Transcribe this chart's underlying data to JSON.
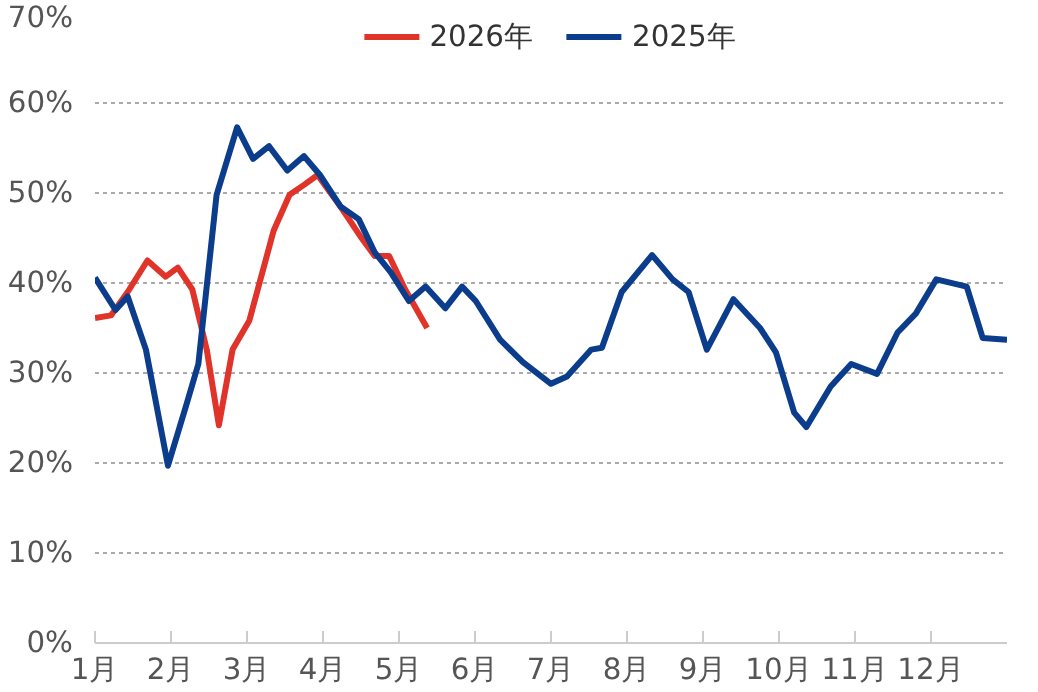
{
  "chart_data": {
    "type": "line",
    "legend": "top",
    "grid": "y",
    "marker": "none",
    "line_style": "solid",
    "xlim": [
      1,
      13
    ],
    "xticks": [
      {
        "value": 1,
        "label": "1月"
      },
      {
        "value": 2,
        "label": "2月"
      },
      {
        "value": 3,
        "label": "3月"
      },
      {
        "value": 4,
        "label": "4月"
      },
      {
        "value": 5,
        "label": "5月"
      },
      {
        "value": 6,
        "label": "6月"
      },
      {
        "value": 7,
        "label": "7月"
      },
      {
        "value": 8,
        "label": "8月"
      },
      {
        "value": 9,
        "label": "9月"
      },
      {
        "value": 10,
        "label": "10月"
      },
      {
        "value": 11,
        "label": "11月"
      },
      {
        "value": 12,
        "label": "12月"
      }
    ],
    "ylim": [
      0,
      70
    ],
    "yticks": [
      {
        "value": 0,
        "label": "0%"
      },
      {
        "value": 10,
        "label": "10%"
      },
      {
        "value": 20,
        "label": "20%"
      },
      {
        "value": 30,
        "label": "30%"
      },
      {
        "value": 40,
        "label": "40%"
      },
      {
        "value": 50,
        "label": "50%"
      },
      {
        "value": 60,
        "label": "60%"
      },
      {
        "value": 70,
        "label": "70%"
      }
    ],
    "series": [
      {
        "name": "2026年",
        "color": "#e0342a",
        "x": [
          1.0,
          1.21,
          1.43,
          1.69,
          1.93,
          2.09,
          2.28,
          2.47,
          2.63,
          2.81,
          3.03,
          3.35,
          3.56,
          3.75,
          3.93,
          4.09,
          4.23,
          4.49,
          4.68,
          4.87,
          5.08,
          5.37
        ],
        "values": [
          36.1,
          36.4,
          39,
          42.5,
          40.7,
          41.7,
          39.3,
          32.6,
          24.2,
          32.6,
          35.8,
          45.8,
          49.8,
          50.9,
          52,
          50.1,
          48.5,
          45.2,
          43,
          43,
          39.3,
          35
        ]
      },
      {
        "name": "2025年",
        "color": "#0b3d8c",
        "x": [
          1.0,
          1.27,
          1.43,
          1.67,
          1.96,
          2.2,
          2.36,
          2.6,
          2.87,
          3.08,
          3.29,
          3.53,
          3.75,
          3.96,
          4.23,
          4.47,
          4.68,
          4.89,
          5.13,
          5.35,
          5.61,
          5.83,
          6.01,
          6.33,
          6.63,
          7.0,
          7.21,
          7.53,
          7.67,
          7.93,
          8.33,
          8.6,
          8.81,
          9.05,
          9.4,
          9.75,
          9.96,
          10.2,
          10.36,
          10.68,
          10.95,
          11.29,
          11.56,
          11.8,
          12.07,
          12.47,
          12.68,
          13.0
        ],
        "values": [
          40.6,
          37,
          38.5,
          32.6,
          19.7,
          26.4,
          31,
          49.8,
          57.3,
          53.8,
          55.2,
          52.5,
          54.1,
          52,
          48.5,
          47.1,
          43.4,
          41.2,
          38,
          39.6,
          37.2,
          39.6,
          38,
          33.7,
          31.2,
          28.8,
          29.6,
          32.6,
          32.8,
          39,
          43.1,
          40.4,
          39,
          32.6,
          38.2,
          35,
          32.3,
          25.6,
          24,
          28.5,
          31,
          29.9,
          34.5,
          36.6,
          40.4,
          39.6,
          33.9,
          33.7
        ]
      }
    ]
  }
}
